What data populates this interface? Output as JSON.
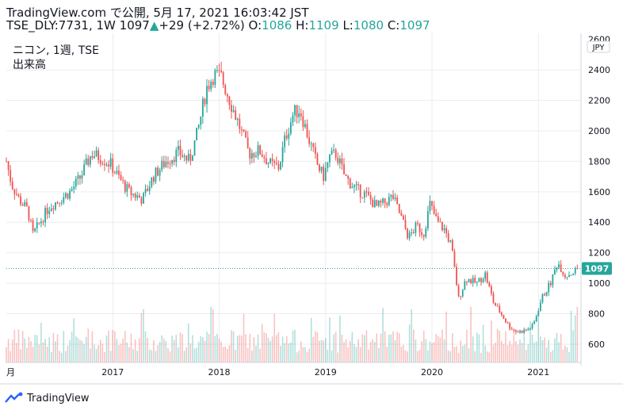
{
  "header": {
    "line1": "TradingView.com で公開, 5月 17, 2021 16:03:42 JST",
    "symbol": "TSE_DLY:7731, 1W",
    "close_val": "1097",
    "change": "+29 (+2.72%)",
    "o_label": "O:",
    "o_val": "1086",
    "h_label": "H:",
    "h_val": "1109",
    "l_label": "L:",
    "l_val": "1080",
    "c_label": "C:",
    "c_val": "1097"
  },
  "legend": {
    "series_name": "ニコン, 1週, TSE",
    "volume_label": "出来高"
  },
  "currency": "JPY",
  "footer": {
    "brand": "TradingView"
  },
  "colors": {
    "up": "#26a69a",
    "down": "#ef5350",
    "grid": "#e9ecf2",
    "price_tag": "#26a69a"
  },
  "chart_data": {
    "type": "candlestick",
    "y_axis": {
      "ticks": [
        600,
        800,
        1000,
        1200,
        1400,
        1600,
        1800,
        2000,
        2200,
        2400,
        2600
      ],
      "range": [
        480,
        2640
      ],
      "position": "right"
    },
    "x_axis": {
      "ticks": [
        "月",
        "2017",
        "2018",
        "2019",
        "2020",
        "2021"
      ],
      "range_years": [
        2016.0,
        2021.4
      ]
    },
    "last_price": 1097,
    "grid": true,
    "price_path": [
      [
        2016.0,
        1800
      ],
      [
        2016.05,
        1650
      ],
      [
        2016.12,
        1550
      ],
      [
        2016.2,
        1480
      ],
      [
        2016.25,
        1320
      ],
      [
        2016.3,
        1380
      ],
      [
        2016.4,
        1500
      ],
      [
        2016.5,
        1550
      ],
      [
        2016.6,
        1600
      ],
      [
        2016.7,
        1700
      ],
      [
        2016.8,
        1850
      ],
      [
        2016.9,
        1820
      ],
      [
        2016.98,
        1780
      ],
      [
        2017.05,
        1700
      ],
      [
        2017.15,
        1600
      ],
      [
        2017.28,
        1550
      ],
      [
        2017.38,
        1700
      ],
      [
        2017.5,
        1800
      ],
      [
        2017.62,
        1860
      ],
      [
        2017.72,
        1800
      ],
      [
        2017.8,
        2000
      ],
      [
        2017.88,
        2280
      ],
      [
        2017.95,
        2370
      ],
      [
        2018.02,
        2350
      ],
      [
        2018.1,
        2200
      ],
      [
        2018.18,
        2050
      ],
      [
        2018.28,
        1850
      ],
      [
        2018.38,
        1870
      ],
      [
        2018.48,
        1780
      ],
      [
        2018.56,
        1760
      ],
      [
        2018.62,
        1950
      ],
      [
        2018.7,
        2120
      ],
      [
        2018.76,
        2140
      ],
      [
        2018.84,
        1950
      ],
      [
        2018.92,
        1780
      ],
      [
        2018.98,
        1700
      ],
      [
        2019.04,
        1830
      ],
      [
        2019.1,
        1850
      ],
      [
        2019.18,
        1700
      ],
      [
        2019.28,
        1620
      ],
      [
        2019.38,
        1580
      ],
      [
        2019.48,
        1500
      ],
      [
        2019.56,
        1530
      ],
      [
        2019.63,
        1570
      ],
      [
        2019.7,
        1450
      ],
      [
        2019.78,
        1300
      ],
      [
        2019.86,
        1380
      ],
      [
        2019.92,
        1320
      ],
      [
        2019.98,
        1520
      ],
      [
        2020.05,
        1400
      ],
      [
        2020.12,
        1350
      ],
      [
        2020.18,
        1250
      ],
      [
        2020.25,
        900
      ],
      [
        2020.32,
        1030
      ],
      [
        2020.42,
        1000
      ],
      [
        2020.5,
        1060
      ],
      [
        2020.58,
        870
      ],
      [
        2020.65,
        800
      ],
      [
        2020.72,
        720
      ],
      [
        2020.8,
        680
      ],
      [
        2020.88,
        690
      ],
      [
        2020.95,
        720
      ],
      [
        2021.03,
        900
      ],
      [
        2021.12,
        1010
      ],
      [
        2021.18,
        1140
      ],
      [
        2021.25,
        1050
      ],
      [
        2021.32,
        1070
      ],
      [
        2021.37,
        1097
      ]
    ]
  }
}
